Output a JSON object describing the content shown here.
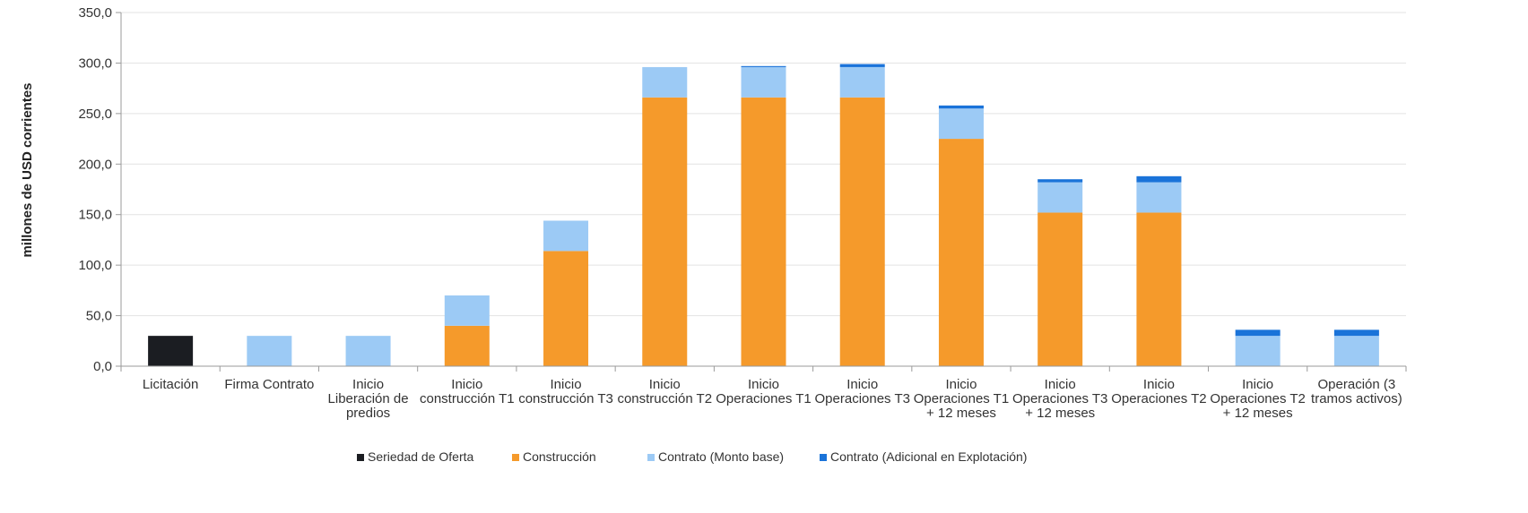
{
  "chart_data": {
    "type": "bar",
    "stacked": true,
    "ylabel": "millones de USD corrientes",
    "ylim": [
      0,
      350
    ],
    "yticks": [
      "0,0",
      "50,0",
      "100,0",
      "150,0",
      "200,0",
      "250,0",
      "300,0",
      "350,0"
    ],
    "grid": true,
    "legend_position": "bottom",
    "categories": [
      [
        "Licitación"
      ],
      [
        "Firma Contrato"
      ],
      [
        "Inicio",
        "Liberación de",
        "predios"
      ],
      [
        "Inicio",
        "construcción T1"
      ],
      [
        "Inicio",
        "construcción T3"
      ],
      [
        "Inicio",
        "construcción T2"
      ],
      [
        "Inicio",
        "Operaciones T1"
      ],
      [
        "Inicio",
        "Operaciones T3"
      ],
      [
        "Inicio",
        "Operaciones T1",
        "+ 12 meses"
      ],
      [
        "Inicio",
        "Operaciones T3",
        "+ 12 meses"
      ],
      [
        "Inicio",
        "Operaciones T2"
      ],
      [
        "Inicio",
        "Operaciones T2",
        "+ 12 meses"
      ],
      [
        "Operación (3",
        "tramos activos)"
      ]
    ],
    "series": [
      {
        "name": "Seriedad de Oferta",
        "color": "#1b1d22",
        "values": [
          30,
          0,
          0,
          0,
          0,
          0,
          0,
          0,
          0,
          0,
          0,
          0,
          0
        ]
      },
      {
        "name": "Construcción",
        "color": "#f59a2b",
        "values": [
          0,
          0,
          0,
          40,
          114,
          266,
          266,
          266,
          225,
          152,
          152,
          0,
          0
        ]
      },
      {
        "name": "Contrato (Monto base)",
        "color": "#9ccaf5",
        "values": [
          0,
          30,
          30,
          30,
          30,
          30,
          30,
          30,
          30,
          30,
          30,
          30,
          30
        ]
      },
      {
        "name": "Contrato (Adicional en Explotación)",
        "color": "#1a73d9",
        "values": [
          0,
          0,
          0,
          0,
          0,
          0,
          1,
          3,
          3,
          3,
          6,
          6,
          6
        ]
      }
    ]
  }
}
